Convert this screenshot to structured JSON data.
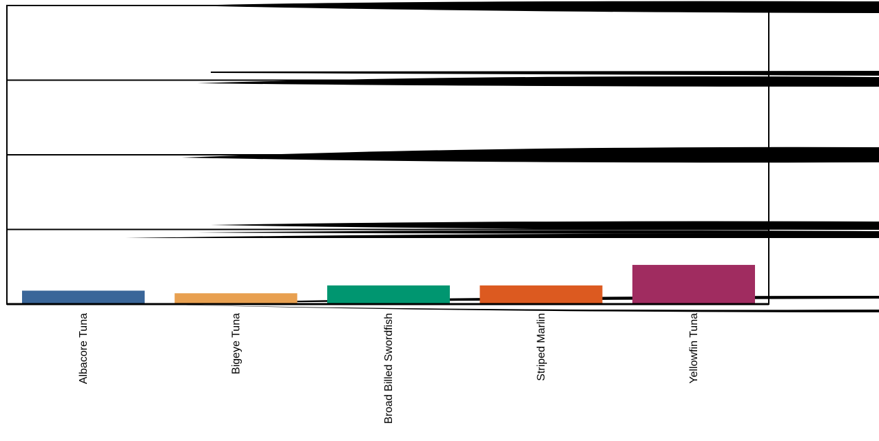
{
  "chart_data": {
    "type": "bar",
    "title": "",
    "xlabel": "",
    "ylabel": "",
    "categories": [
      "Albacore Tuna",
      "Bigeye Tuna",
      "Broad Billed Swordfish",
      "Striped Marlin",
      "Yellowfin Tuna"
    ],
    "values": [
      0.72,
      0.58,
      1.0,
      1.0,
      2.1
    ],
    "colors": [
      "#3a6699",
      "#e8a050",
      "#009670",
      "#dc5a20",
      "#a02c60"
    ],
    "ylim": [
      0,
      16
    ],
    "gridlines_y": [
      4,
      8,
      12,
      16
    ],
    "grid": true,
    "legend": "none",
    "frame": "box"
  }
}
